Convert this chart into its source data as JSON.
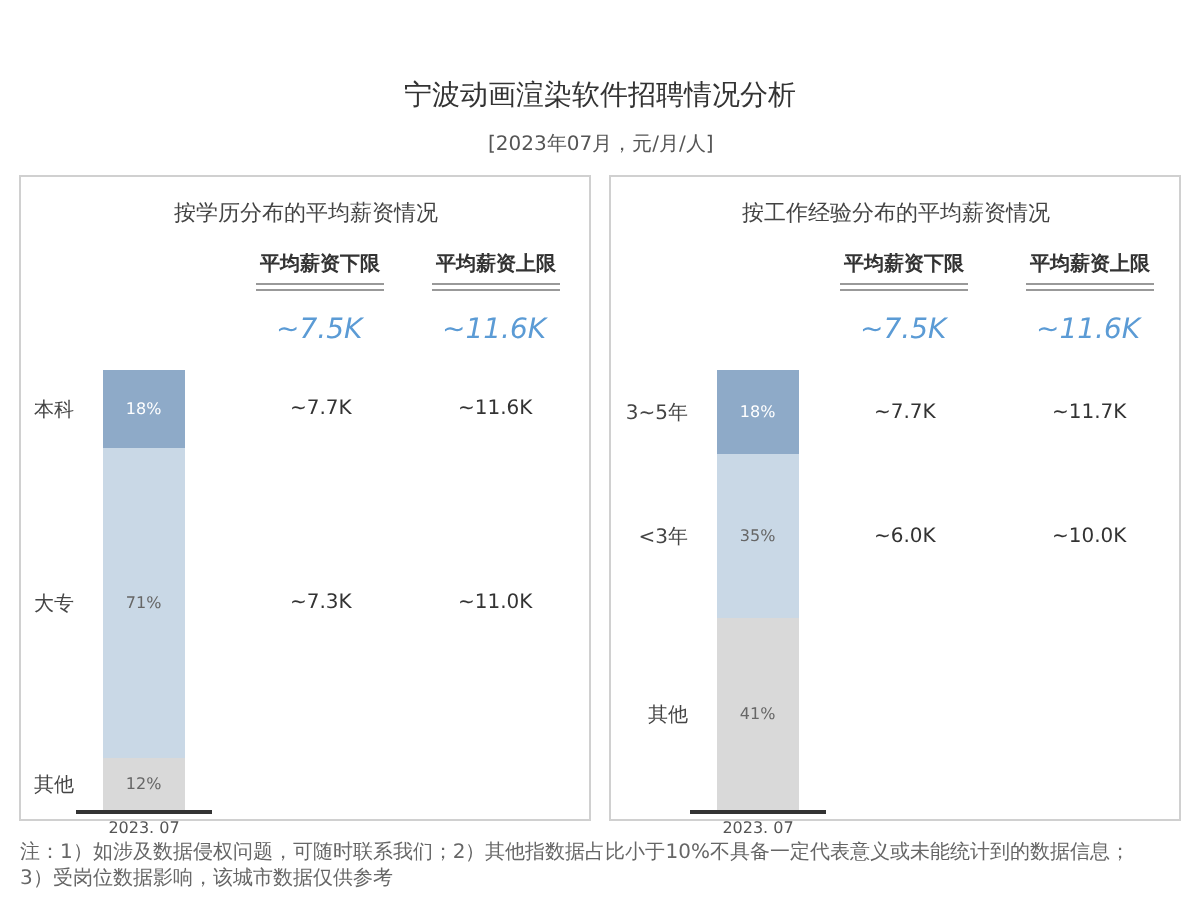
{
  "chart_data": [
    {
      "type": "bar",
      "stacked": true,
      "categories": [
        "2023. 07"
      ],
      "series": [
        {
          "name": "其他",
          "color": "#d9d9d9",
          "values": [
            12
          ],
          "value_labels": [
            "12%"
          ]
        },
        {
          "name": "大专",
          "color": "#c9d8e6",
          "values": [
            71
          ],
          "value_labels": [
            "71%"
          ]
        },
        {
          "name": "本科",
          "color": "#8eaac8",
          "values": [
            18
          ],
          "value_labels": [
            "18%"
          ]
        }
      ],
      "annotations": [
        "宁波动画渲染软件招聘情况分析",
        "[2023年07月，元/月/人]",
        "按学历分布的平均薪资情况",
        "平均薪资下限",
        "平均薪资上限",
        "~7.5K",
        "~11.6K",
        "~7.7K",
        "~11.6K",
        "~7.3K",
        "~11.0K",
        "注：1）如涉及数据侵权问题，可随时联系我们；2）其他指数据占比小于10%不具备一定代表意义或未能统计到的数据信息；3）受岗位数据影响，该城市数据仅供参考"
      ]
    },
    {
      "type": "bar",
      "stacked": true,
      "categories": [
        "2023. 07"
      ],
      "series": [
        {
          "name": "其他",
          "color": "#d9d9d9",
          "values": [
            41
          ],
          "value_labels": [
            "41%"
          ]
        },
        {
          "name": "<3年",
          "color": "#c9d8e6",
          "values": [
            35
          ],
          "value_labels": [
            "35%"
          ]
        },
        {
          "name": "3~5年",
          "color": "#8eaac8",
          "values": [
            18
          ],
          "value_labels": [
            "18%"
          ]
        }
      ],
      "annotations": [
        "按工作经验分布的平均薪资情况",
        "平均薪资下限",
        "平均薪资上限",
        "~7.5K",
        "~11.6K",
        "~7.7K",
        "~11.7K",
        "~6.0K",
        "~10.0K"
      ]
    }
  ]
}
